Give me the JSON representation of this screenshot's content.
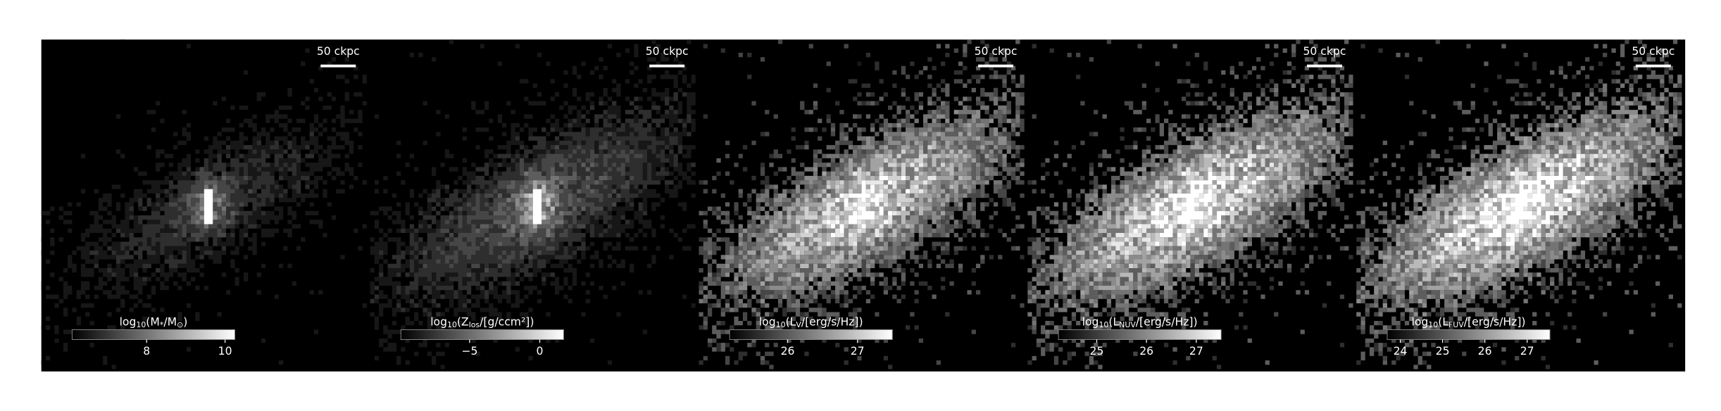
{
  "panels": [
    {
      "scale_label": "50 ckpc",
      "colorbar": {
        "label": [
          "log",
          "10",
          "(M",
          "*",
          "/M",
          "⊙",
          ")"
        ],
        "lim": [
          6.1,
          10.25
        ],
        "ticks": [
          8,
          10
        ]
      }
    },
    {
      "scale_label": "50 ckpc",
      "colorbar": {
        "label": [
          "log",
          "10",
          "(Z",
          "los",
          "/[g/ccm²])"
        ],
        "lim": [
          -9.9,
          1.7
        ],
        "ticks": [
          {
            "value": -5,
            "label": "−5"
          },
          0
        ]
      }
    },
    {
      "scale_label": "50 ckpc",
      "colorbar": {
        "label": [
          "log",
          "10",
          "(L",
          "V",
          "/[erg/s/Hz])"
        ],
        "lim": [
          25.17,
          27.5
        ],
        "ticks": [
          26,
          27
        ]
      }
    },
    {
      "scale_label": "50 ckpc",
      "colorbar": {
        "label": [
          "log",
          "10",
          "(L",
          "NUV",
          "/[erg/s/Hz])"
        ],
        "lim": [
          24.23,
          27.5
        ],
        "ticks": [
          25,
          26,
          27
        ]
      }
    },
    {
      "scale_label": "50 ckpc",
      "colorbar": {
        "label": [
          "log",
          "10",
          "(L",
          "FUV",
          "/[erg/s/Hz])"
        ],
        "lim": [
          23.69,
          27.54
        ],
        "ticks": [
          24,
          25,
          26,
          27
        ]
      }
    }
  ]
}
